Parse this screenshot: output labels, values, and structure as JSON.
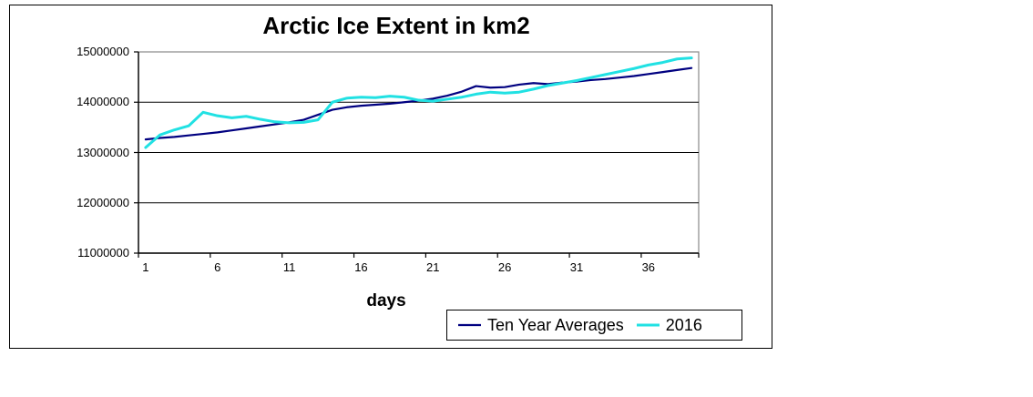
{
  "chart_data": {
    "type": "line",
    "title": "Arctic Ice Extent in km2",
    "xlabel": "days",
    "ylabel": "",
    "x": [
      1,
      2,
      3,
      4,
      5,
      6,
      7,
      8,
      9,
      10,
      11,
      12,
      13,
      14,
      15,
      16,
      17,
      18,
      19,
      20,
      21,
      22,
      23,
      24,
      25,
      26,
      27,
      28,
      29,
      30,
      31,
      32,
      33,
      34,
      35,
      36,
      37,
      38,
      39
    ],
    "x_tick_labels": [
      1,
      6,
      11,
      16,
      21,
      26,
      31,
      36
    ],
    "x_tick_interval": 5,
    "y_tick_labels": [
      "15000000",
      "14000000",
      "13000000",
      "12000000",
      "11000000"
    ],
    "ylim": [
      11000000,
      15000000
    ],
    "grid": "horizontal",
    "legend_position": "bottom-right",
    "colors": {
      "axis": "#000000",
      "plot_border": "#888888",
      "gridline": "#000000",
      "background": "#ffffff"
    },
    "series": [
      {
        "name": "Ten Year Averages",
        "color": "#000080",
        "width": 2.2,
        "values": [
          13260000,
          13290000,
          13310000,
          13340000,
          13370000,
          13400000,
          13440000,
          13480000,
          13520000,
          13560000,
          13600000,
          13650000,
          13750000,
          13850000,
          13900000,
          13930000,
          13950000,
          13970000,
          14000000,
          14030000,
          14070000,
          14130000,
          14210000,
          14320000,
          14290000,
          14300000,
          14350000,
          14380000,
          14360000,
          14390000,
          14410000,
          14440000,
          14460000,
          14490000,
          14520000,
          14560000,
          14600000,
          14640000,
          14680000
        ]
      },
      {
        "name": "2016",
        "color": "#21e1e3",
        "width": 3,
        "values": [
          13100000,
          13350000,
          13450000,
          13530000,
          13800000,
          13730000,
          13690000,
          13720000,
          13660000,
          13610000,
          13590000,
          13600000,
          13650000,
          14000000,
          14080000,
          14100000,
          14090000,
          14120000,
          14100000,
          14040000,
          14020000,
          14060000,
          14100000,
          14160000,
          14200000,
          14180000,
          14200000,
          14260000,
          14330000,
          14380000,
          14430000,
          14490000,
          14550000,
          14610000,
          14670000,
          14740000,
          14790000,
          14860000,
          14880000
        ]
      }
    ]
  }
}
